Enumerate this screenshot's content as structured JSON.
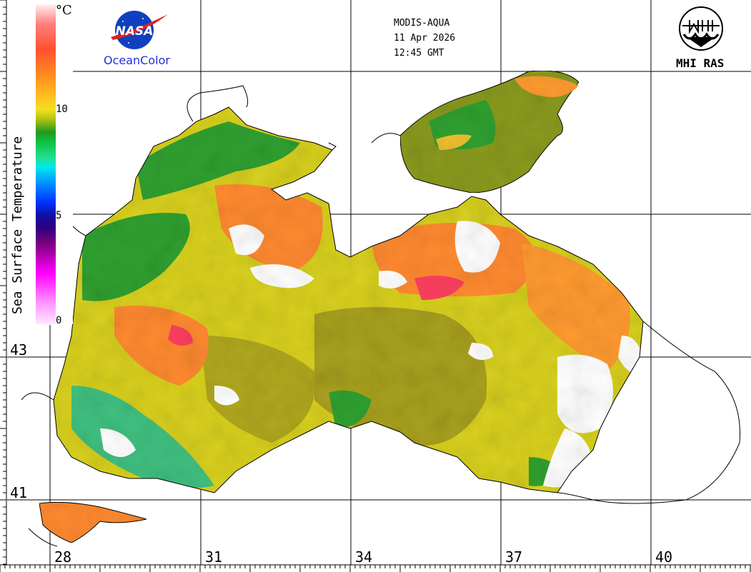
{
  "header": {
    "sensor": "MODIS-AQUA",
    "date": "11 Apr 2026",
    "time": "12:45 GMT"
  },
  "logos": {
    "nasa": {
      "text": "NASA",
      "caption": "OceanColor"
    },
    "institute": {
      "caption": "MHI RAS"
    }
  },
  "legend": {
    "title": "Sea Surface Temperature",
    "unit": "°C",
    "ticks": [
      "10",
      "5",
      "0"
    ],
    "colors": [
      "#ffe8ff",
      "#ff00ff",
      "#800080",
      "#1010a0",
      "#0030ff",
      "#00e8f0",
      "#10c040",
      "#209a20",
      "#f0e020",
      "#ff8a20",
      "#ff5030",
      "#fff0f0"
    ]
  },
  "latitudes": [
    "43",
    "41"
  ],
  "longitudes": [
    "28",
    "31",
    "34",
    "37",
    "40"
  ],
  "colors": {
    "sea_warm": "#ff8a30",
    "sea_mid": "#d8d020",
    "sea_olive": "#a8a020",
    "sea_cool": "#30a030",
    "land": "#ffffff",
    "coast": "#000000"
  }
}
